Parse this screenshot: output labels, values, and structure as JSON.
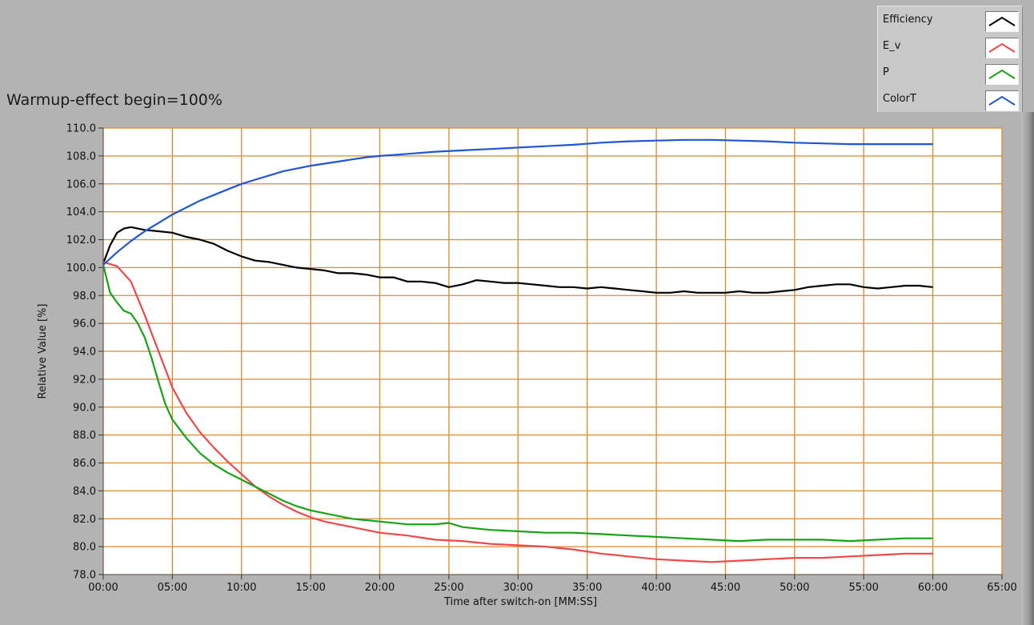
{
  "chart_data": {
    "type": "line",
    "title": "Warmup-effect begin=100%",
    "xlabel": "Time after switch-on [MM:SS]",
    "ylabel": "Relative Value [%]",
    "xlim": [
      0,
      65
    ],
    "ylim": [
      78,
      110
    ],
    "x_ticks": [
      {
        "value": 0,
        "label": "00:00"
      },
      {
        "value": 5,
        "label": "05:00"
      },
      {
        "value": 10,
        "label": "10:00"
      },
      {
        "value": 15,
        "label": "15:00"
      },
      {
        "value": 20,
        "label": "20:00"
      },
      {
        "value": 25,
        "label": "25:00"
      },
      {
        "value": 30,
        "label": "30:00"
      },
      {
        "value": 35,
        "label": "35:00"
      },
      {
        "value": 40,
        "label": "40:00"
      },
      {
        "value": 45,
        "label": "45:00"
      },
      {
        "value": 50,
        "label": "50:00"
      },
      {
        "value": 55,
        "label": "55:00"
      },
      {
        "value": 60,
        "label": "60:00"
      },
      {
        "value": 65,
        "label": "65:00"
      }
    ],
    "y_ticks": [
      {
        "value": 110,
        "label": "110.0"
      },
      {
        "value": 108,
        "label": "108.0"
      },
      {
        "value": 106,
        "label": "106.0"
      },
      {
        "value": 104,
        "label": "104.0"
      },
      {
        "value": 102,
        "label": "102.0"
      },
      {
        "value": 100,
        "label": "100.0"
      },
      {
        "value": 98,
        "label": "98.0"
      },
      {
        "value": 96,
        "label": "96.0"
      },
      {
        "value": 94,
        "label": "94.0"
      },
      {
        "value": 92,
        "label": "92.0"
      },
      {
        "value": 90,
        "label": "90.0"
      },
      {
        "value": 88,
        "label": "88.0"
      },
      {
        "value": 86,
        "label": "86.0"
      },
      {
        "value": 84,
        "label": "84.0"
      },
      {
        "value": 82,
        "label": "82.0"
      },
      {
        "value": 80,
        "label": "80.0"
      },
      {
        "value": 78,
        "label": "78.0"
      }
    ],
    "grid": true,
    "grid_color": "#d98a2b",
    "plot_background": "#ffffff",
    "legend_position": "top-right",
    "series": [
      {
        "name": "Efficiency",
        "color": "#000000",
        "x": [
          0,
          0.5,
          1,
          1.5,
          2,
          3,
          4,
          5,
          6,
          7,
          8,
          9,
          10,
          11,
          12,
          13,
          14,
          15,
          16,
          17,
          18,
          19,
          20,
          21,
          22,
          23,
          24,
          25,
          26,
          27,
          28,
          29,
          30,
          31,
          32,
          33,
          34,
          35,
          36,
          37,
          38,
          39,
          40,
          41,
          42,
          43,
          44,
          45,
          46,
          47,
          48,
          49,
          50,
          51,
          52,
          53,
          54,
          55,
          56,
          57,
          58,
          59,
          60
        ],
        "y": [
          100.3,
          101.6,
          102.5,
          102.8,
          102.9,
          102.7,
          102.6,
          102.5,
          102.2,
          102.0,
          101.7,
          101.2,
          100.8,
          100.5,
          100.4,
          100.2,
          100.0,
          99.9,
          99.8,
          99.6,
          99.6,
          99.5,
          99.3,
          99.3,
          99.0,
          99.0,
          98.9,
          98.6,
          98.8,
          99.1,
          99.0,
          98.9,
          98.9,
          98.8,
          98.7,
          98.6,
          98.6,
          98.5,
          98.6,
          98.5,
          98.4,
          98.3,
          98.2,
          98.2,
          98.3,
          98.2,
          98.2,
          98.2,
          98.3,
          98.2,
          98.2,
          98.3,
          98.4,
          98.6,
          98.7,
          98.8,
          98.8,
          98.6,
          98.5,
          98.6,
          98.7,
          98.7,
          98.6
        ]
      },
      {
        "name": "E_v",
        "color": "#f04848",
        "x": [
          0,
          1,
          2,
          3,
          4,
          5,
          6,
          7,
          8,
          9,
          10,
          11,
          12,
          13,
          14,
          15,
          16,
          17,
          18,
          19,
          20,
          22,
          24,
          26,
          28,
          30,
          32,
          34,
          36,
          38,
          40,
          42,
          44,
          46,
          48,
          50,
          52,
          54,
          56,
          58,
          60
        ],
        "y": [
          100.4,
          100.1,
          99.0,
          96.6,
          94.0,
          91.4,
          89.6,
          88.2,
          87.1,
          86.1,
          85.2,
          84.3,
          83.6,
          83.0,
          82.5,
          82.1,
          81.8,
          81.6,
          81.4,
          81.2,
          81.0,
          80.8,
          80.5,
          80.4,
          80.2,
          80.1,
          80.0,
          79.8,
          79.5,
          79.3,
          79.1,
          79.0,
          78.9,
          79.0,
          79.1,
          79.2,
          79.2,
          79.3,
          79.4,
          79.5,
          79.5
        ]
      },
      {
        "name": "P",
        "color": "#16a316",
        "x": [
          0,
          0.5,
          1,
          1.5,
          2,
          2.5,
          3,
          3.5,
          4,
          4.5,
          5,
          6,
          7,
          8,
          9,
          10,
          11,
          12,
          13,
          14,
          15,
          16,
          17,
          18,
          19,
          20,
          22,
          24,
          25,
          26,
          28,
          30,
          32,
          34,
          36,
          38,
          40,
          42,
          44,
          46,
          48,
          50,
          52,
          54,
          56,
          58,
          60
        ],
        "y": [
          100.2,
          98.2,
          97.5,
          96.9,
          96.7,
          96.0,
          95.0,
          93.5,
          91.8,
          90.2,
          89.1,
          87.8,
          86.7,
          85.9,
          85.3,
          84.8,
          84.3,
          83.8,
          83.3,
          82.9,
          82.6,
          82.4,
          82.2,
          82.0,
          81.9,
          81.8,
          81.6,
          81.6,
          81.7,
          81.4,
          81.2,
          81.1,
          81.0,
          81.0,
          80.9,
          80.8,
          80.7,
          80.6,
          80.5,
          80.4,
          80.5,
          80.5,
          80.5,
          80.4,
          80.5,
          80.6,
          80.6
        ]
      },
      {
        "name": "ColorT",
        "color": "#1f55d6",
        "x": [
          0,
          1,
          2,
          3,
          4,
          5,
          6,
          7,
          8,
          9,
          10,
          11,
          12,
          13,
          14,
          15,
          16,
          17,
          18,
          19,
          20,
          22,
          24,
          26,
          28,
          30,
          32,
          34,
          36,
          38,
          40,
          42,
          44,
          46,
          48,
          50,
          52,
          54,
          56,
          58,
          60
        ],
        "y": [
          100.2,
          101.1,
          101.9,
          102.6,
          103.2,
          103.8,
          104.3,
          104.8,
          105.2,
          105.6,
          106.0,
          106.3,
          106.6,
          106.9,
          107.1,
          107.3,
          107.45,
          107.6,
          107.75,
          107.9,
          108.0,
          108.15,
          108.3,
          108.4,
          108.5,
          108.6,
          108.7,
          108.8,
          108.95,
          109.05,
          109.1,
          109.15,
          109.15,
          109.1,
          109.05,
          108.95,
          108.9,
          108.85,
          108.85,
          108.85,
          108.85
        ]
      }
    ]
  }
}
